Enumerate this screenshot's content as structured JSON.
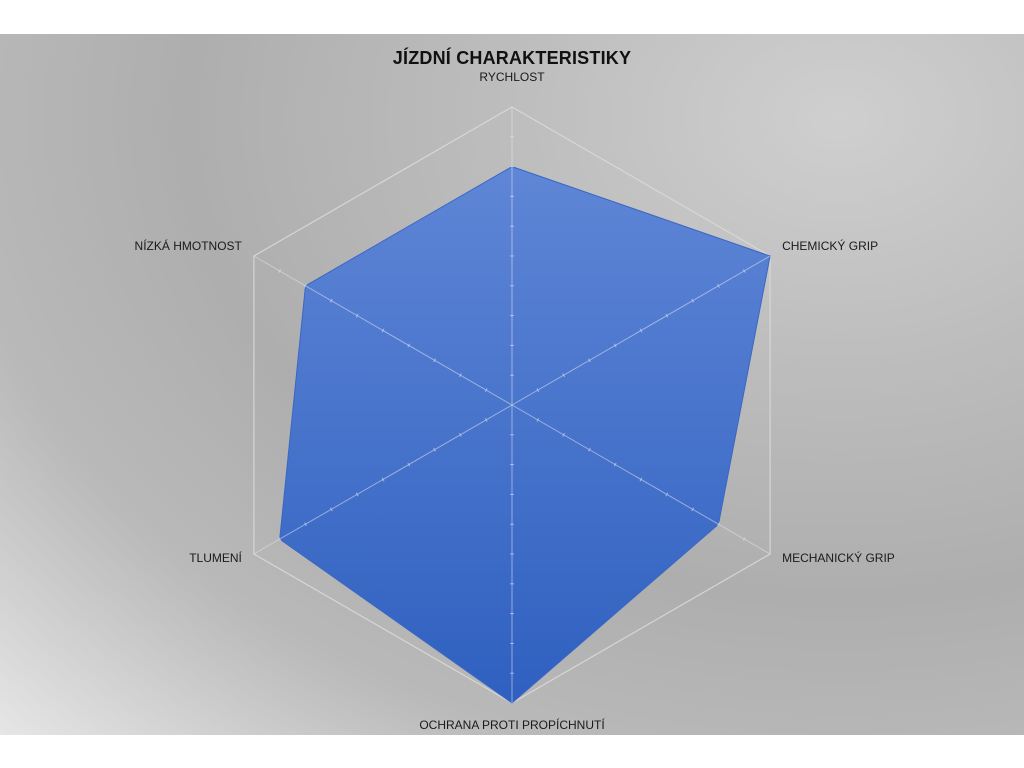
{
  "chart_data": {
    "type": "radar",
    "title": "JÍZDNÍ CHARAKTERISTIKY",
    "categories": [
      "RYCHLOST",
      "CHEMICKÝ GRIP",
      "MECHANICKÝ GRIP",
      "OCHRANA PROTI PROPÍCHNUTÍ",
      "TLUMENÍ",
      "NÍZKÁ HMOTNOST"
    ],
    "series": [
      {
        "values": [
          8,
          10,
          8,
          10,
          9,
          8
        ],
        "color": "#3f6fcc"
      }
    ],
    "rmax": 10,
    "gridlines": true,
    "tick_marks": 10
  },
  "colors": {
    "fill": "#3f6fcc",
    "fill_light": "#5a84d6",
    "fill_dark": "#2f5fbf",
    "gridline": "#d9d9d9"
  }
}
